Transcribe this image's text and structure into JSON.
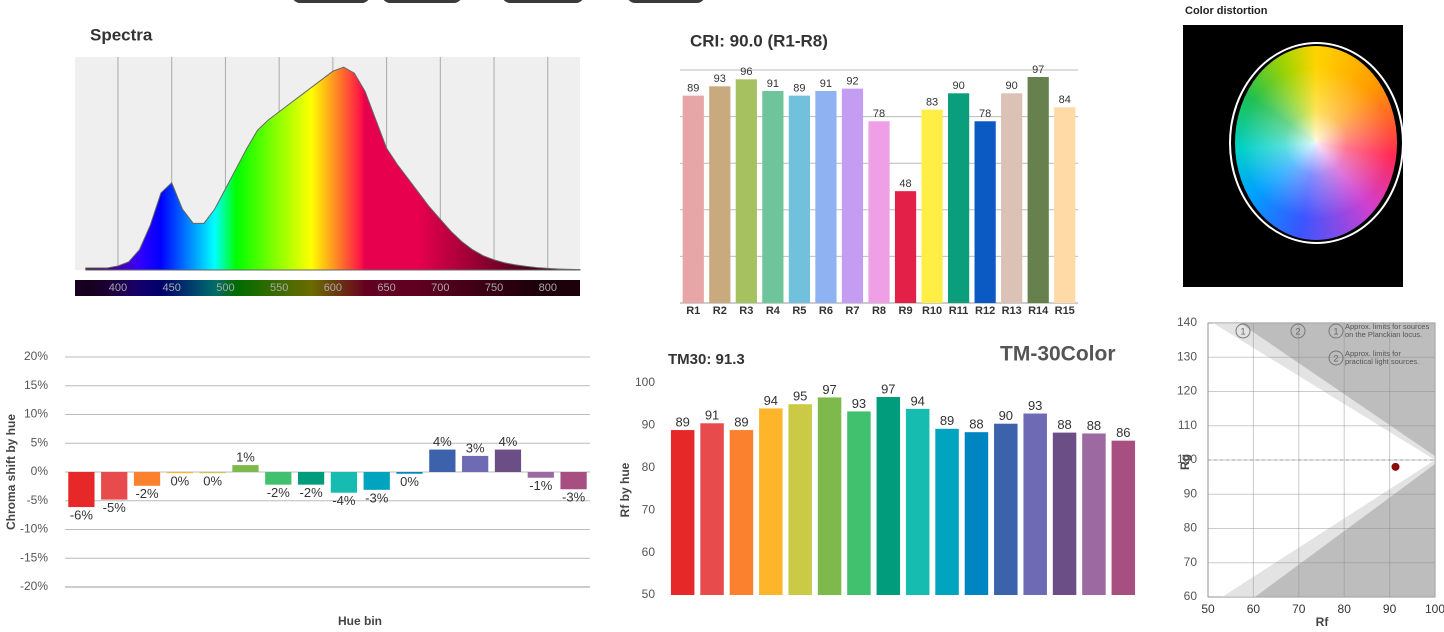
{
  "chart_data": [
    {
      "type": "area",
      "title": "Spectra",
      "x": [
        370,
        380,
        390,
        400,
        410,
        420,
        430,
        440,
        450,
        460,
        470,
        480,
        490,
        500,
        510,
        520,
        530,
        540,
        550,
        560,
        570,
        580,
        590,
        600,
        610,
        620,
        630,
        640,
        650,
        660,
        670,
        680,
        690,
        700,
        710,
        720,
        730,
        740,
        750,
        760,
        770,
        780,
        790,
        800,
        810,
        820,
        830
      ],
      "values": [
        0.01,
        0.01,
        0.01,
        0.02,
        0.04,
        0.1,
        0.22,
        0.38,
        0.43,
        0.3,
        0.23,
        0.23,
        0.3,
        0.4,
        0.5,
        0.6,
        0.69,
        0.74,
        0.78,
        0.82,
        0.86,
        0.9,
        0.94,
        0.98,
        1.0,
        0.97,
        0.88,
        0.74,
        0.6,
        0.52,
        0.45,
        0.38,
        0.31,
        0.25,
        0.19,
        0.14,
        0.1,
        0.07,
        0.05,
        0.035,
        0.025,
        0.018,
        0.012,
        0.008,
        0.005,
        0.003,
        0.002
      ],
      "xlim": [
        360,
        830
      ],
      "ylim": [
        0,
        1.05
      ],
      "xticks": [
        400,
        450,
        500,
        550,
        600,
        650,
        700,
        750,
        800
      ],
      "grid": true,
      "color": "#666666"
    },
    {
      "type": "bar",
      "title": "CRI: 90.0 (R1-R8)",
      "categories": [
        "R1",
        "R2",
        "R3",
        "R4",
        "R5",
        "R6",
        "R7",
        "R8",
        "R9",
        "R10",
        "R11",
        "R12",
        "R13",
        "R14",
        "R15"
      ],
      "values": [
        89,
        93,
        96,
        91,
        89,
        91,
        92,
        78,
        48,
        83,
        90,
        78,
        90,
        97,
        84
      ],
      "colors": [
        "#e8a5a8",
        "#c9aa7f",
        "#a5c160",
        "#6fc59b",
        "#72c1dc",
        "#8fb3f2",
        "#c49cf2",
        "#ee9fe6",
        "#e32048",
        "#ffee45",
        "#0a9e7c",
        "#0b5ac3",
        "#dcc2b6",
        "#66804e",
        "#ffd9a6"
      ],
      "ylim": [
        0,
        100
      ],
      "yticks": [
        0,
        20,
        40,
        60,
        80,
        100
      ],
      "grid": true,
      "show_tick_labels": false
    },
    {
      "type": "bar",
      "y_label": "Chroma shift by hue",
      "x_label": "Hue bin",
      "values": [
        -6.1,
        -4.8,
        -2.4,
        -0.2,
        -0.2,
        1.2,
        -2.2,
        -2.2,
        -3.6,
        -3.1,
        -0.3,
        3.9,
        2.8,
        3.9,
        -1.0,
        -3.0
      ],
      "value_labels": [
        "-6%",
        "-5%",
        "-2%",
        "0%",
        "0%",
        "1%",
        "-2%",
        "-2%",
        "-4%",
        "-3%",
        "0%",
        "4%",
        "3%",
        "4%",
        "-1%",
        "-3%"
      ],
      "colors": [
        "#e62828",
        "#e74b4b",
        "#fb812e",
        "#ffb529",
        "#cbca46",
        "#7eb94c",
        "#41c06d",
        "#009c7c",
        "#16bcb0",
        "#00a4bf",
        "#0085c3",
        "#3b62aa",
        "#6e6ab4",
        "#6a4e85",
        "#9d69a1",
        "#a74f81"
      ],
      "ylim": [
        -20,
        20
      ],
      "yticks": [
        {
          "value": -20,
          "label": "-20%"
        },
        {
          "value": -15,
          "label": "-15%"
        },
        {
          "value": -10,
          "label": "-10%"
        },
        {
          "value": -5,
          "label": "-5%"
        },
        {
          "value": 0,
          "label": "0%"
        },
        {
          "value": 5,
          "label": "5%"
        },
        {
          "value": 10,
          "label": "10%"
        },
        {
          "value": 15,
          "label": "15%"
        },
        {
          "value": 20,
          "label": "20%"
        }
      ],
      "grid": true
    },
    {
      "type": "bar",
      "title": "TM30: 91.3",
      "y_label": "Rf by hue",
      "values": [
        88.9,
        90.5,
        88.9,
        94.0,
        95.0,
        96.6,
        93.3,
        96.7,
        93.9,
        89.2,
        88.4,
        90.4,
        92.8,
        88.3,
        88.1,
        86.4
      ],
      "value_labels": [
        "89",
        "91",
        "89",
        "94",
        "95",
        "97",
        "93",
        "97",
        "94",
        "89",
        "88",
        "90",
        "93",
        "88",
        "88",
        "86"
      ],
      "colors": [
        "#e62828",
        "#e74b4b",
        "#fb812e",
        "#ffb529",
        "#cbca46",
        "#7eb94c",
        "#41c06d",
        "#009c7c",
        "#16bcb0",
        "#00a4bf",
        "#0085c3",
        "#3b62aa",
        "#6e6ab4",
        "#6a4e85",
        "#9d69a1",
        "#a74f81"
      ],
      "ylim": [
        50,
        100
      ],
      "yticks": [
        50,
        60,
        70,
        80,
        90,
        100
      ],
      "grid": false
    },
    {
      "type": "scatter",
      "x_label": "Rf",
      "y_label": "Rg",
      "x": [
        91.3
      ],
      "values": [
        98
      ],
      "color": "#8b0a0a",
      "xlim": [
        50,
        100
      ],
      "ylim": [
        60,
        140
      ],
      "xticks": [
        50,
        60,
        70,
        80,
        90,
        100
      ],
      "yticks": [
        60,
        70,
        80,
        90,
        100,
        110,
        120,
        130,
        140
      ],
      "grid": true,
      "reference_line": 100,
      "region_labels": [
        "1",
        "2"
      ],
      "notes": [
        {
          "label": "1",
          "lines": [
            "Approx. limits for sources",
            "on the Planckian locus."
          ]
        },
        {
          "label": "2",
          "lines": [
            "Approx. limits for",
            "practical light sources."
          ]
        }
      ]
    }
  ],
  "section_title": "TM-30Color",
  "color_distortion": {
    "title": "Color distortion"
  }
}
